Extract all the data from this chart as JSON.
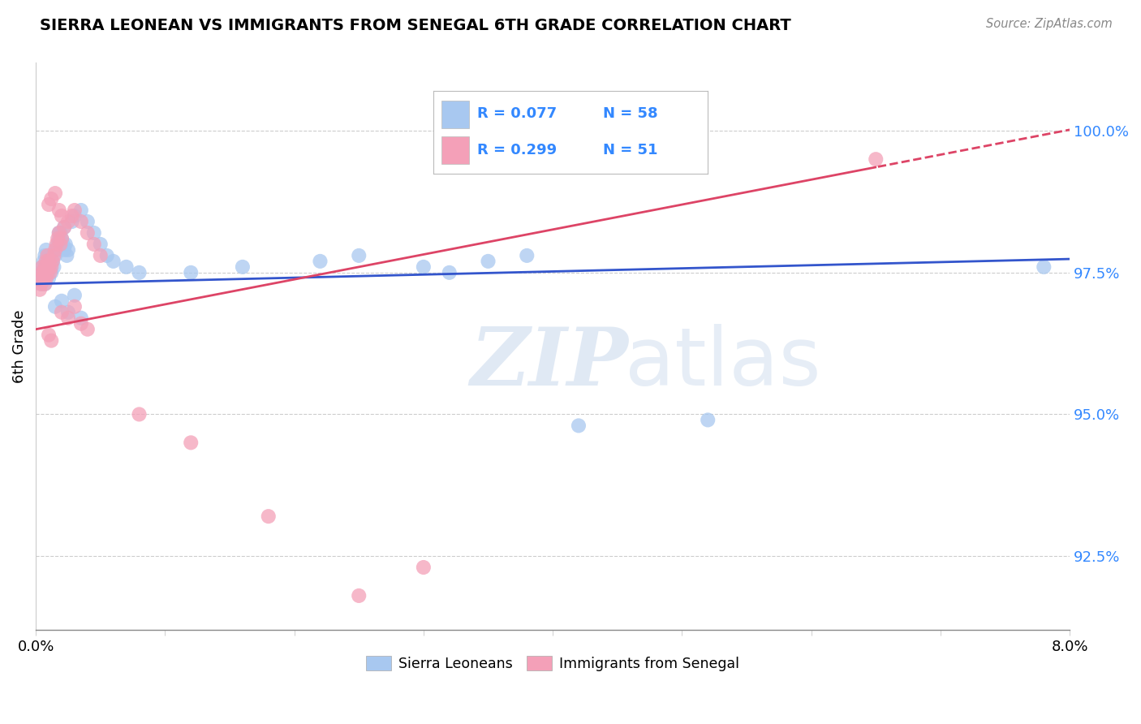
{
  "title": "SIERRA LEONEAN VS IMMIGRANTS FROM SENEGAL 6TH GRADE CORRELATION CHART",
  "source_text": "Source: ZipAtlas.com",
  "ylabel": "6th Grade",
  "xlim": [
    0.0,
    8.0
  ],
  "ylim": [
    91.2,
    101.2
  ],
  "yticks": [
    92.5,
    95.0,
    97.5,
    100.0
  ],
  "ytick_labels": [
    "92.5%",
    "95.0%",
    "97.5%",
    "100.0%"
  ],
  "blue_color": "#A8C8F0",
  "pink_color": "#F4A0B8",
  "blue_line_color": "#3355CC",
  "pink_line_color": "#DD4466",
  "watermark_zip": "ZIP",
  "watermark_atlas": "atlas",
  "blue_R": 0.077,
  "blue_N": 58,
  "pink_R": 0.299,
  "pink_N": 51,
  "blue_intercept": 97.3,
  "blue_slope": 0.055,
  "pink_intercept": 96.5,
  "pink_slope": 0.44,
  "blue_x": [
    0.04,
    0.04,
    0.05,
    0.05,
    0.06,
    0.06,
    0.07,
    0.07,
    0.08,
    0.08,
    0.09,
    0.09,
    0.1,
    0.1,
    0.11,
    0.11,
    0.12,
    0.13,
    0.14,
    0.15,
    0.16,
    0.17,
    0.18,
    0.19,
    0.2,
    0.21,
    0.22,
    0.23,
    0.24,
    0.25,
    0.18,
    0.22,
    0.28,
    0.3,
    0.35,
    0.4,
    0.45,
    0.5,
    0.55,
    0.6,
    0.7,
    0.8,
    1.2,
    1.6,
    2.2,
    2.5,
    3.0,
    3.2,
    3.5,
    3.8,
    4.2,
    5.2,
    7.8,
    0.15,
    0.2,
    0.25,
    0.3,
    0.35
  ],
  "blue_y": [
    97.3,
    97.5,
    97.4,
    97.6,
    97.5,
    97.7,
    97.3,
    97.8,
    97.4,
    97.9,
    97.5,
    97.6,
    97.7,
    97.4,
    97.6,
    97.8,
    97.5,
    97.7,
    97.6,
    97.8,
    97.9,
    98.0,
    98.1,
    98.2,
    98.1,
    98.0,
    97.9,
    98.0,
    97.8,
    97.9,
    98.2,
    98.3,
    98.4,
    98.5,
    98.6,
    98.4,
    98.2,
    98.0,
    97.8,
    97.7,
    97.6,
    97.5,
    97.5,
    97.6,
    97.7,
    97.8,
    97.6,
    97.5,
    97.7,
    97.8,
    94.8,
    94.9,
    97.6,
    96.9,
    97.0,
    96.8,
    97.1,
    96.7
  ],
  "pink_x": [
    0.03,
    0.04,
    0.04,
    0.05,
    0.05,
    0.06,
    0.06,
    0.07,
    0.07,
    0.08,
    0.08,
    0.09,
    0.09,
    0.1,
    0.1,
    0.11,
    0.12,
    0.13,
    0.14,
    0.15,
    0.16,
    0.17,
    0.18,
    0.19,
    0.2,
    0.22,
    0.25,
    0.28,
    0.3,
    0.35,
    0.4,
    0.45,
    0.5,
    0.2,
    0.25,
    0.3,
    0.35,
    0.4,
    0.8,
    1.2,
    1.8,
    2.5,
    0.1,
    0.12,
    0.15,
    0.18,
    0.2,
    3.0,
    6.5,
    0.1,
    0.12
  ],
  "pink_y": [
    97.2,
    97.3,
    97.4,
    97.5,
    97.6,
    97.4,
    97.5,
    97.3,
    97.6,
    97.4,
    97.7,
    97.5,
    97.8,
    97.6,
    97.7,
    97.5,
    97.6,
    97.7,
    97.8,
    97.9,
    98.0,
    98.1,
    98.2,
    98.0,
    98.1,
    98.3,
    98.4,
    98.5,
    98.6,
    98.4,
    98.2,
    98.0,
    97.8,
    96.8,
    96.7,
    96.9,
    96.6,
    96.5,
    95.0,
    94.5,
    93.2,
    91.8,
    98.7,
    98.8,
    98.9,
    98.6,
    98.5,
    92.3,
    99.5,
    96.4,
    96.3
  ]
}
